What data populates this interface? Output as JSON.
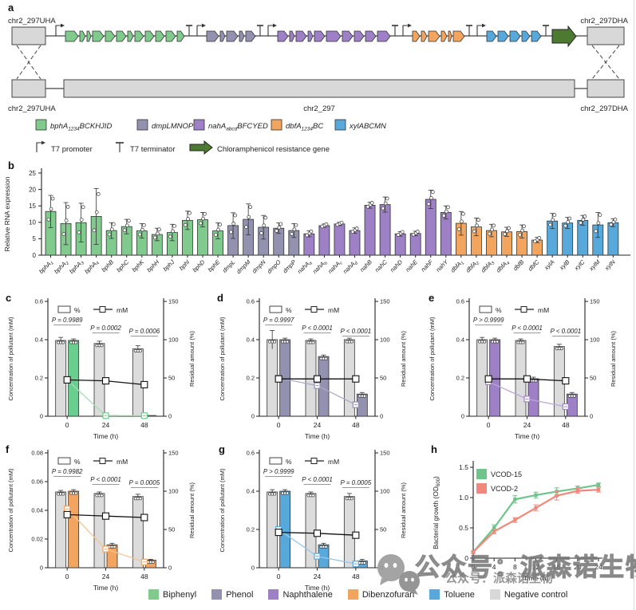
{
  "figure": {
    "panels": {
      "a": "a",
      "b": "b",
      "c": "c",
      "d": "d",
      "e": "e",
      "f": "f",
      "g": "g",
      "h": "h"
    }
  },
  "panel_a": {
    "labels": {
      "top_left": "chr2_297UHA",
      "top_right": "chr2_297DHA",
      "bottom_left": "chr2_297UHA",
      "bottom_center": "chr2_297",
      "bottom_right": "chr2_297DHA"
    },
    "clusters": [
      {
        "name": "bph",
        "color": "#7fca8c",
        "widths": [
          16,
          7,
          5,
          14,
          12,
          12,
          7,
          11,
          11,
          11,
          12,
          9
        ]
      },
      {
        "name": "dmp",
        "color": "#9292b0",
        "widths": [
          15,
          6,
          14,
          6,
          12
        ]
      },
      {
        "name": "nah",
        "color": "#9d80c6",
        "widths": [
          13,
          6,
          13,
          6,
          13,
          18,
          13,
          12,
          13,
          16
        ]
      },
      {
        "name": "dbf",
        "color": "#f2a55e",
        "widths": [
          9,
          7,
          14,
          7,
          4,
          14
        ]
      },
      {
        "name": "xyl",
        "color": "#57a9dc",
        "widths": [
          12,
          13,
          13,
          10,
          12
        ]
      }
    ],
    "cm_gene_color": "#4d7a31",
    "box_color": "#d8d8d8",
    "legend": [
      {
        "color": "#7fca8c",
        "pre": "bphA",
        "sub": "1234",
        "post": "BCKHJID"
      },
      {
        "color": "#9292b0",
        "pre": "dmpLMNOP",
        "sub": "",
        "post": ""
      },
      {
        "color": "#9d80c6",
        "pre": "nahA",
        "sub": "abcd",
        "post": "BFCYED"
      },
      {
        "color": "#f2a55e",
        "pre": "dbfA",
        "sub": "1234",
        "post": "BC"
      },
      {
        "color": "#57a9dc",
        "pre": "xylABCMN",
        "sub": "",
        "post": ""
      }
    ],
    "symbols": {
      "promoter": "T7 promoter",
      "terminator": "T7 terminator",
      "cm": "Chloramphenicol resistance gene"
    }
  },
  "chart_data": [
    {
      "id": "b",
      "type": "bar",
      "ylabel": "Relative RNA expression",
      "ylim": [
        0,
        25
      ],
      "yticks": [
        0,
        5,
        10,
        15,
        20,
        25
      ],
      "groups": [
        {
          "count": 12,
          "color": "#7fca8c"
        },
        {
          "count": 5,
          "color": "#9292b0"
        },
        {
          "count": 10,
          "color": "#9d80c6"
        },
        {
          "count": 6,
          "color": "#f2a55e"
        },
        {
          "count": 5,
          "color": "#57a9dc"
        }
      ],
      "categories": [
        [
          "bphA",
          "1"
        ],
        [
          "bphA",
          "2"
        ],
        [
          "bphA",
          "3"
        ],
        [
          "bphA",
          "4"
        ],
        [
          "bphB",
          ""
        ],
        [
          "bphC",
          ""
        ],
        [
          "bphK",
          ""
        ],
        [
          "bphH",
          ""
        ],
        [
          "bphJ",
          ""
        ],
        [
          "bphI",
          ""
        ],
        [
          "bphD",
          ""
        ],
        [
          "bphE",
          ""
        ],
        [
          "dmpL",
          ""
        ],
        [
          "dmpM",
          ""
        ],
        [
          "dmpN",
          ""
        ],
        [
          "dmpO",
          ""
        ],
        [
          "dmpP",
          ""
        ],
        [
          "nahA",
          "a"
        ],
        [
          "nahA",
          "b"
        ],
        [
          "nahA",
          "c"
        ],
        [
          "nahA",
          "d"
        ],
        [
          "nahB",
          ""
        ],
        [
          "nahC",
          ""
        ],
        [
          "nahD",
          ""
        ],
        [
          "nahE",
          ""
        ],
        [
          "nahF",
          ""
        ],
        [
          "nahY",
          ""
        ],
        [
          "dbfA",
          "1"
        ],
        [
          "dbfA",
          "2"
        ],
        [
          "dbfA",
          "3"
        ],
        [
          "dbfA",
          "4"
        ],
        [
          "dbfB",
          ""
        ],
        [
          "dbfC",
          ""
        ],
        [
          "xylA",
          ""
        ],
        [
          "xylB",
          ""
        ],
        [
          "xylC",
          ""
        ],
        [
          "xylM",
          ""
        ],
        [
          "xylN",
          ""
        ]
      ],
      "values": [
        13.3,
        9.6,
        9.9,
        11.8,
        7.5,
        8.7,
        7.4,
        6.3,
        6.9,
        10.6,
        10.8,
        7.4,
        9.0,
        10.9,
        8.5,
        8.2,
        7.5,
        6.5,
        9.0,
        9.5,
        7.5,
        15.2,
        15.4,
        6.5,
        6.6,
        17.0,
        13.0,
        9.7,
        8.6,
        7.5,
        7.1,
        7.2,
        4.6,
        10.4,
        9.8,
        10.6,
        9.2,
        9.9
      ],
      "errors": [
        4.9,
        6.4,
        5.9,
        8.5,
        2.4,
        2.2,
        2.2,
        1.9,
        2.5,
        2.8,
        2.2,
        2.4,
        3.9,
        4.7,
        3.6,
        1.6,
        2.1,
        0.9,
        0.5,
        0.5,
        0.8,
        0.9,
        2.3,
        0.7,
        0.7,
        2.8,
        2.0,
        3.6,
        2.7,
        1.9,
        1.4,
        2.0,
        0.8,
        2.3,
        1.7,
        1.5,
        3.8,
        1.2
      ]
    },
    {
      "id": "c",
      "type": "dual",
      "pollutant": "Biphenyl",
      "bar_color": "#69cf8f",
      "line_color": "#a6dcb6",
      "left_tick_vals": [
        0,
        0.2,
        0.4,
        0.6
      ],
      "left_tick_labels": [
        "0",
        "0.2",
        "0.4",
        "0.6"
      ],
      "right_tick_vals": [
        0,
        50,
        100,
        150
      ],
      "right_tick_labels": [
        "0",
        "50",
        "100",
        "150"
      ],
      "x": [
        "0",
        "24",
        "48"
      ],
      "control_pct": [
        99,
        95,
        88
      ],
      "treat_pct": [
        99,
        1,
        1
      ],
      "control_err": [
        4,
        3,
        4
      ],
      "treat_err": [
        2,
        1,
        1
      ],
      "control_mM": [
        0.19,
        0.185,
        0.165
      ],
      "treat_mM": [
        0.19,
        0.003,
        0.003
      ],
      "p_values": [
        "P = 0.9989",
        "P = 0.0002",
        "P = 0.0006"
      ],
      "legend": {
        "bar": "%",
        "line": "mM"
      },
      "ylabel": "Concentration of pollutant (mM)",
      "right_ylabel": "Residual amount (%)",
      "xlabel": "Time (h)"
    },
    {
      "id": "d",
      "type": "dual",
      "pollutant": "Phenol",
      "bar_color": "#9292b0",
      "line_color": "#aaaac6",
      "left_tick_vals": [
        0,
        0.2,
        0.4,
        0.6
      ],
      "left_tick_labels": [
        "0",
        "0.2",
        "0.4",
        "0.6"
      ],
      "right_tick_vals": [
        0,
        50,
        100,
        150
      ],
      "right_tick_labels": [
        "0",
        "50",
        "100",
        "150"
      ],
      "x": [
        "0",
        "24",
        "48"
      ],
      "control_pct": [
        100,
        99,
        100
      ],
      "treat_pct": [
        100,
        78,
        29
      ],
      "control_err": [
        12,
        2,
        2
      ],
      "treat_err": [
        2,
        2,
        2
      ],
      "control_mM": [
        0.195,
        0.195,
        0.195
      ],
      "treat_mM": [
        0.2,
        0.16,
        0.06
      ],
      "p_values": [
        "P = 0.9997",
        "P < 0.0001",
        "P < 0.0001"
      ],
      "legend": {
        "bar": "%",
        "line": "mM"
      },
      "ylabel": "Concentration of pollutant (mM)",
      "right_ylabel": "Residual amount (%)",
      "xlabel": "Time (h)"
    },
    {
      "id": "e",
      "type": "dual",
      "pollutant": "Naphthalene",
      "bar_color": "#9d80c6",
      "line_color": "#bda6da",
      "left_tick_vals": [
        0,
        0.2,
        0.4,
        0.6
      ],
      "left_tick_labels": [
        "0",
        "0.2",
        "0.4",
        "0.6"
      ],
      "right_tick_vals": [
        0,
        50,
        100,
        150
      ],
      "right_tick_labels": [
        "0",
        "50",
        "100",
        "150"
      ],
      "x": [
        "0",
        "24",
        "48"
      ],
      "control_pct": [
        100,
        99,
        91
      ],
      "treat_pct": [
        100,
        49,
        29
      ],
      "control_err": [
        3,
        2,
        3
      ],
      "treat_err": [
        2,
        2,
        2
      ],
      "control_mM": [
        0.195,
        0.195,
        0.185
      ],
      "treat_mM": [
        0.18,
        0.09,
        0.05
      ],
      "p_values": [
        "P > 0.9999",
        "P < 0.0001",
        "P < 0.0001"
      ],
      "legend": {
        "bar": "%",
        "line": "mM"
      },
      "ylabel": "Concentration of pollutant (mM)",
      "right_ylabel": "Residual amount (%)",
      "xlabel": "Time (h)"
    },
    {
      "id": "f",
      "type": "dual",
      "pollutant": "Dibenzofuran",
      "bar_color": "#f2a55e",
      "line_color": "#f5c694",
      "left_tick_vals": [
        0,
        0.02,
        0.04,
        0.06,
        0.08
      ],
      "left_tick_labels": [
        "0",
        "0.02",
        "0.04",
        "0.06",
        "0.08"
      ],
      "right_tick_vals": [
        0,
        50,
        100,
        150
      ],
      "right_tick_labels": [
        "0",
        "50",
        "100",
        "150"
      ],
      "x": [
        "0",
        "24",
        "48"
      ],
      "control_pct": [
        99,
        97,
        93
      ],
      "treat_pct": [
        100,
        30,
        10
      ],
      "control_err": [
        2,
        2,
        3
      ],
      "treat_err": [
        2,
        2,
        1
      ],
      "control_mM": [
        0.037,
        0.036,
        0.035
      ],
      "treat_mM": [
        0.041,
        0.013,
        0.004
      ],
      "p_values": [
        "P = 0.9982",
        "P < 0.0001",
        "P = 0.0005"
      ],
      "legend": {
        "bar": "%",
        "line": "mM"
      },
      "ylabel": "Concentration of pollutant (mM)",
      "right_ylabel": "Residual amount (%)",
      "xlabel": "Time (h)"
    },
    {
      "id": "g",
      "type": "dual",
      "pollutant": "Toluene",
      "bar_color": "#57a9dc",
      "line_color": "#99c8e8",
      "left_tick_vals": [
        0,
        0.2,
        0.4,
        0.6
      ],
      "left_tick_labels": [
        "0",
        "0.2",
        "0.4",
        "0.6"
      ],
      "right_tick_vals": [
        0,
        50,
        100,
        150
      ],
      "right_tick_labels": [
        "0",
        "50",
        "100",
        "150"
      ],
      "x": [
        "0",
        "24",
        "48"
      ],
      "control_pct": [
        99,
        97,
        93
      ],
      "treat_pct": [
        100,
        30,
        9
      ],
      "control_err": [
        3,
        2,
        4
      ],
      "treat_err": [
        2,
        2,
        2
      ],
      "control_mM": [
        0.185,
        0.18,
        0.17
      ],
      "treat_mM": [
        0.2,
        0.06,
        0.02
      ],
      "p_values": [
        "P > 0.9999",
        "P < 0.0001",
        "P = 0.0005"
      ],
      "legend": {
        "bar": "%",
        "line": "mM"
      },
      "ylabel": "Concentration of pollutant (mM)",
      "right_ylabel": "Residual amount (%)",
      "xlabel": "Time (h)"
    },
    {
      "id": "h",
      "type": "line",
      "x": [
        0,
        4,
        8,
        12,
        16,
        20,
        24
      ],
      "xtick_labels": [
        "0",
        "4",
        "8",
        "12",
        "16",
        "20",
        "24"
      ],
      "ytick_vals": [
        0,
        0.5,
        1.0,
        1.5
      ],
      "ytick_labels": [
        "0",
        "0.5",
        "1.0",
        "1.5"
      ],
      "series": [
        {
          "name": "VCOD-15",
          "color": "#6ec48b",
          "values": [
            0.1,
            0.5,
            0.97,
            1.04,
            1.1,
            1.15,
            1.21
          ],
          "errors": [
            0.02,
            0.05,
            0.06,
            0.05,
            0.06,
            0.04,
            0.03
          ]
        },
        {
          "name": "VCOD-2",
          "color": "#f0897c",
          "values": [
            0.1,
            0.44,
            0.63,
            0.83,
            1.03,
            1.11,
            1.13
          ],
          "errors": [
            0.02,
            0.04,
            0.04,
            0.05,
            0.07,
            0.04,
            0.04
          ]
        }
      ],
      "ylabel_pre": "Bacterial growth (OD",
      "ylabel_sub": "600",
      "ylabel_post": ")",
      "xlabel": "Time (h)"
    }
  ],
  "bottom_legend": [
    {
      "label": "Biphenyl",
      "color": "#7fca8c"
    },
    {
      "label": "Phenol",
      "color": "#9292b0"
    },
    {
      "label": "Naphthalene",
      "color": "#9d80c6"
    },
    {
      "label": "Dibenzofuran",
      "color": "#f2a55e"
    },
    {
      "label": "Toluene",
      "color": "#57a9dc"
    },
    {
      "label": "Negative control",
      "color": "#d8d8d8"
    }
  ],
  "watermark": {
    "text": "公众号：派森诺生物"
  }
}
